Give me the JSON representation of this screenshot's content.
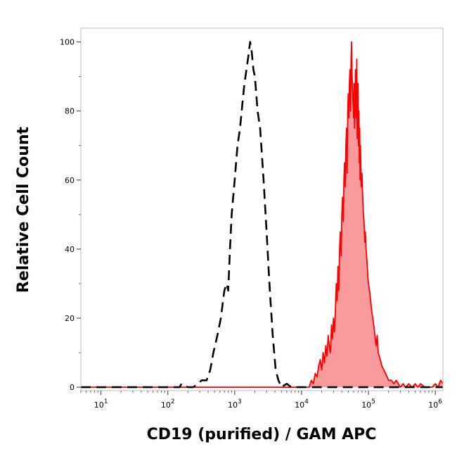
{
  "chart_data": {
    "type": "area",
    "xlabel": "CD19 (purified) / GAM APC",
    "ylabel": "Relative Cell Count",
    "x_scale": "log",
    "xlim": [
      5,
      1300000
    ],
    "ylim": [
      -1,
      104
    ],
    "x_ticks": [
      {
        "value": 10,
        "base": "10",
        "exp": "1"
      },
      {
        "value": 100,
        "base": "10",
        "exp": "2"
      },
      {
        "value": 1000,
        "base": "10",
        "exp": "3"
      },
      {
        "value": 10000,
        "base": "10",
        "exp": "4"
      },
      {
        "value": 100000,
        "base": "10",
        "exp": "5"
      },
      {
        "value": 1000000,
        "base": "10",
        "exp": "6"
      }
    ],
    "y_ticks": [
      0,
      20,
      40,
      60,
      80,
      100
    ],
    "grid": false,
    "legend": "none",
    "series": [
      {
        "style": "dashed",
        "color": "#000000",
        "fill": "none",
        "x": [
          5,
          150,
          160,
          200,
          240,
          280,
          320,
          380,
          430,
          480,
          550,
          620,
          700,
          760,
          800,
          850,
          900,
          1000,
          1100,
          1200,
          1300,
          1400,
          1500,
          1600,
          1700,
          1800,
          1900,
          2000,
          2200,
          2400,
          2700,
          3000,
          3300,
          3700,
          4100,
          4500,
          5000,
          6000,
          7000,
          9000,
          1300000
        ],
        "y": [
          0,
          0,
          1,
          0,
          0,
          1,
          2,
          2,
          5,
          10,
          15,
          20,
          28,
          30,
          28,
          40,
          50,
          60,
          70,
          75,
          82,
          88,
          92,
          96,
          100,
          97,
          92,
          90,
          80,
          75,
          60,
          45,
          30,
          15,
          5,
          2,
          0,
          1,
          0,
          0,
          0
        ]
      },
      {
        "style": "solid",
        "color": "#ff0000",
        "fill": "#f99a9c",
        "x": [
          5,
          13000,
          14000,
          15000,
          16000,
          17000,
          18000,
          19000,
          20000,
          21000,
          22000,
          23000,
          24000,
          25000,
          26000,
          27000,
          28000,
          29000,
          30000,
          31000,
          32000,
          33000,
          34000,
          35000,
          36000,
          37000,
          38000,
          39000,
          40000,
          41000,
          42000,
          43000,
          44000,
          45000,
          46000,
          47000,
          48000,
          49000,
          50000,
          51000,
          52000,
          53000,
          54000,
          55000,
          56000,
          57000,
          58000,
          59000,
          60000,
          61000,
          62000,
          63000,
          64000,
          65000,
          66000,
          67000,
          68000,
          69000,
          70000,
          71000,
          72000,
          73000,
          74000,
          75000,
          76000,
          78000,
          80000,
          82000,
          84000,
          86000,
          88000,
          90000,
          92000,
          94000,
          96000,
          98000,
          100000,
          104000,
          108000,
          112000,
          116000,
          120000,
          125000,
          130000,
          135000,
          140000,
          150000,
          160000,
          170000,
          180000,
          190000,
          200000,
          220000,
          240000,
          260000,
          280000,
          300000,
          330000,
          360000,
          400000,
          450000,
          500000,
          550000,
          600000,
          700000,
          800000,
          900000,
          1000000,
          1100000,
          1200000,
          1300000
        ],
        "y": [
          0,
          0,
          2,
          1,
          4,
          3,
          6,
          8,
          5,
          10,
          7,
          12,
          9,
          15,
          12,
          10,
          18,
          14,
          20,
          16,
          22,
          30,
          25,
          35,
          28,
          40,
          45,
          38,
          50,
          55,
          48,
          60,
          65,
          58,
          70,
          75,
          62,
          80,
          85,
          78,
          88,
          92,
          80,
          95,
          100,
          90,
          85,
          82,
          78,
          88,
          75,
          80,
          92,
          85,
          78,
          95,
          72,
          85,
          88,
          70,
          80,
          65,
          75,
          60,
          70,
          58,
          62,
          55,
          50,
          48,
          42,
          45,
          40,
          38,
          35,
          32,
          30,
          28,
          25,
          22,
          20,
          18,
          15,
          12,
          15,
          10,
          8,
          6,
          5,
          4,
          3,
          2,
          2,
          1,
          2,
          1,
          0,
          1,
          0,
          1,
          0,
          1,
          0,
          1,
          0,
          0,
          0,
          1,
          0,
          2,
          1
        ]
      }
    ]
  }
}
